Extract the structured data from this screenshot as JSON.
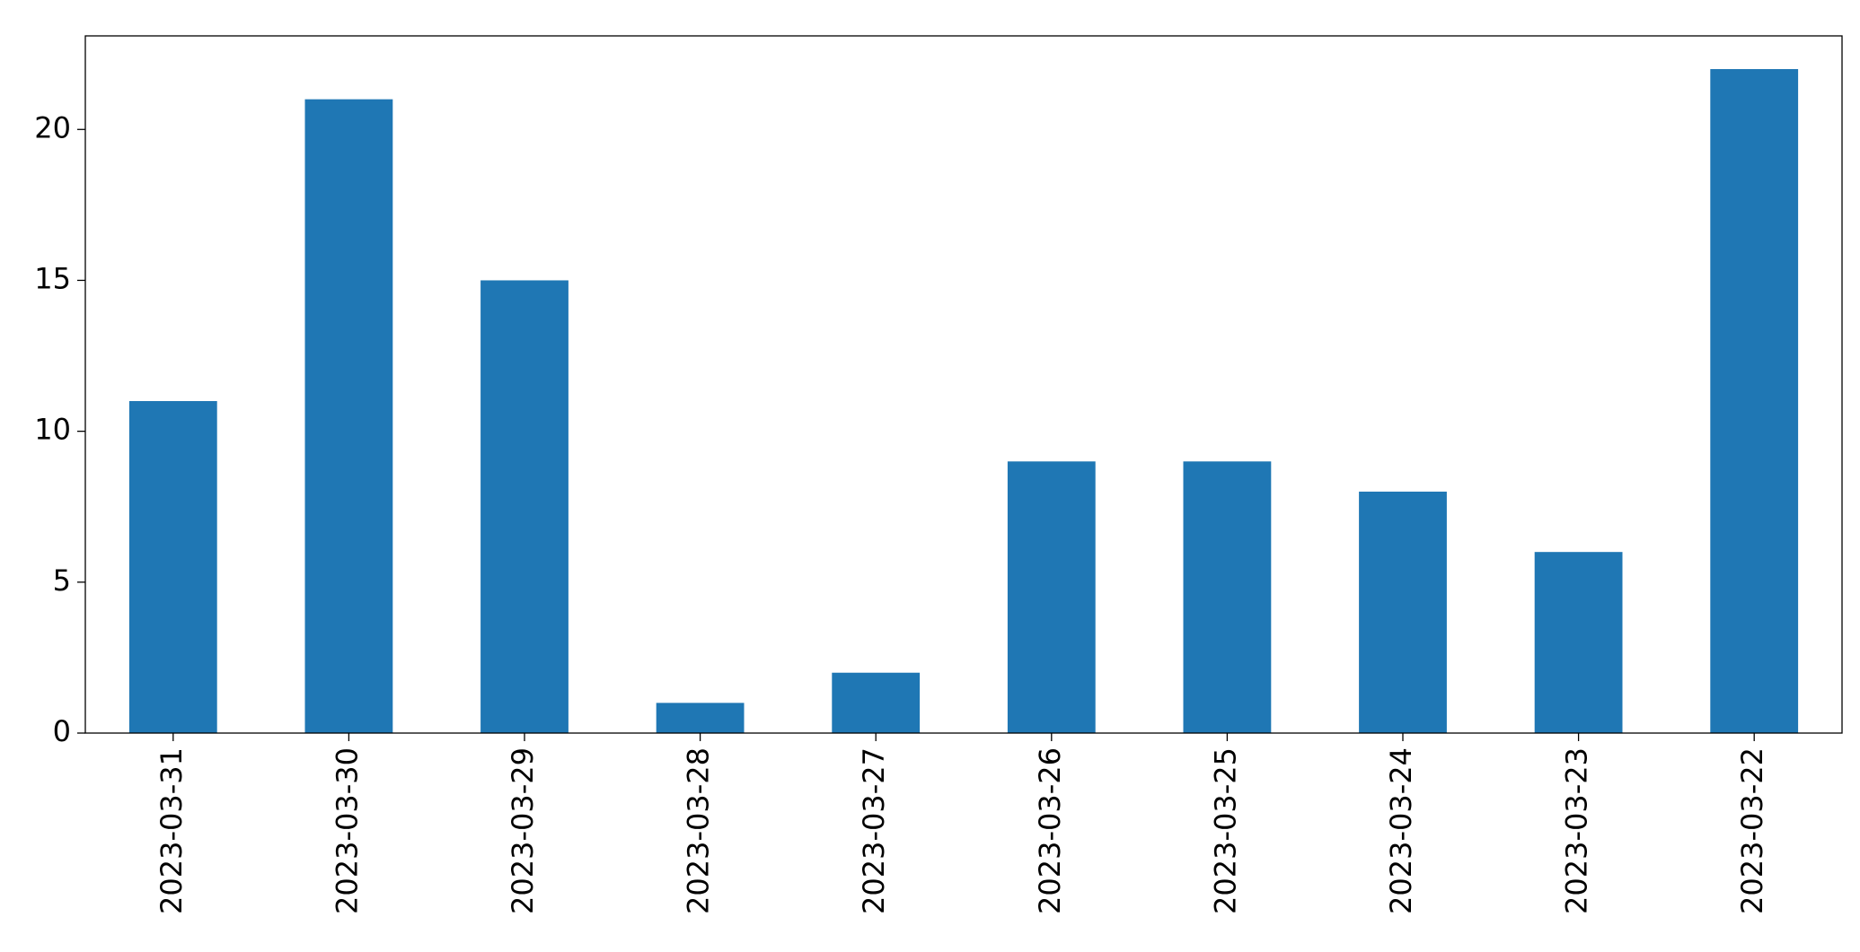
{
  "chart_data": {
    "type": "bar",
    "categories": [
      "2023-03-31",
      "2023-03-30",
      "2023-03-29",
      "2023-03-28",
      "2023-03-27",
      "2023-03-26",
      "2023-03-25",
      "2023-03-24",
      "2023-03-23",
      "2023-03-22"
    ],
    "values": [
      11,
      21,
      15,
      1,
      2,
      9,
      9,
      8,
      6,
      22
    ],
    "color": "#1f77b4",
    "ylim": [
      0,
      23.1
    ],
    "yticks": [
      0,
      5,
      10,
      15,
      20
    ],
    "grid": false
  }
}
